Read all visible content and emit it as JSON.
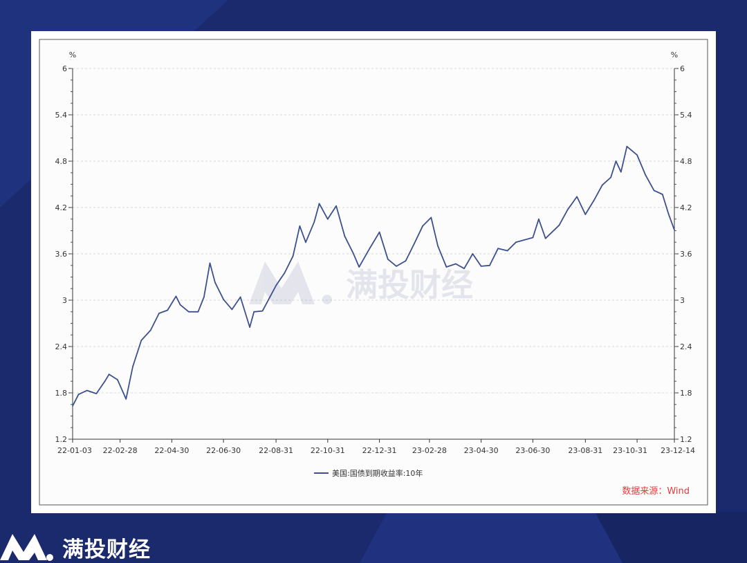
{
  "brand": {
    "name": "满投财经",
    "watermark": "满投财经"
  },
  "colors": {
    "background": "#1a2a6c",
    "line": "#3d4f8c",
    "source": "#e23a3a"
  },
  "chart_data": {
    "type": "line",
    "title": "",
    "xlabel": "",
    "ylabel": "%",
    "ylabel_right": "%",
    "ylim": [
      1.2,
      6
    ],
    "yticks": [
      1.2,
      1.8,
      2.4,
      3,
      3.6,
      4.2,
      4.8,
      5.4,
      6
    ],
    "xlim": [
      "2022-01-03",
      "2023-12-14"
    ],
    "xticks": [
      "22-01-03",
      "22-02-28",
      "22-04-30",
      "22-06-30",
      "22-08-31",
      "22-10-31",
      "22-12-31",
      "23-02-28",
      "23-04-30",
      "23-06-30",
      "23-08-31",
      "23-10-31",
      "23-12-14"
    ],
    "grid": true,
    "legend_position": "bottom",
    "source_note": "数据来源：Wind",
    "series": [
      {
        "name": "美国:国债到期收益率:10年",
        "x": [
          "2022-01-03",
          "2022-01-10",
          "2022-01-20",
          "2022-01-31",
          "2022-02-10",
          "2022-02-15",
          "2022-02-25",
          "2022-03-07",
          "2022-03-15",
          "2022-03-25",
          "2022-04-05",
          "2022-04-15",
          "2022-04-25",
          "2022-05-05",
          "2022-05-10",
          "2022-05-20",
          "2022-05-31",
          "2022-06-07",
          "2022-06-14",
          "2022-06-20",
          "2022-06-30",
          "2022-07-10",
          "2022-07-20",
          "2022-07-31",
          "2022-08-05",
          "2022-08-15",
          "2022-08-31",
          "2022-09-10",
          "2022-09-20",
          "2022-09-28",
          "2022-10-05",
          "2022-10-15",
          "2022-10-21",
          "2022-10-31",
          "2022-11-10",
          "2022-11-20",
          "2022-11-30",
          "2022-12-07",
          "2022-12-20",
          "2022-12-31",
          "2023-01-10",
          "2023-01-20",
          "2023-01-31",
          "2023-02-10",
          "2023-02-20",
          "2023-03-02",
          "2023-03-10",
          "2023-03-20",
          "2023-03-31",
          "2023-04-10",
          "2023-04-20",
          "2023-04-30",
          "2023-05-10",
          "2023-05-20",
          "2023-05-31",
          "2023-06-10",
          "2023-06-20",
          "2023-06-30",
          "2023-07-07",
          "2023-07-15",
          "2023-07-31",
          "2023-08-10",
          "2023-08-21",
          "2023-08-31",
          "2023-09-10",
          "2023-09-20",
          "2023-09-30",
          "2023-10-06",
          "2023-10-12",
          "2023-10-19",
          "2023-10-31",
          "2023-11-10",
          "2023-11-20",
          "2023-11-30",
          "2023-12-07",
          "2023-12-14"
        ],
        "values": [
          1.63,
          1.78,
          1.83,
          1.79,
          1.95,
          2.04,
          1.97,
          1.72,
          2.14,
          2.48,
          2.61,
          2.83,
          2.87,
          3.05,
          2.94,
          2.85,
          2.85,
          3.04,
          3.48,
          3.23,
          3.01,
          2.88,
          3.04,
          2.65,
          2.85,
          2.86,
          3.19,
          3.35,
          3.57,
          3.96,
          3.75,
          4.01,
          4.25,
          4.05,
          4.22,
          3.83,
          3.61,
          3.43,
          3.68,
          3.88,
          3.53,
          3.44,
          3.51,
          3.73,
          3.96,
          4.07,
          3.7,
          3.43,
          3.47,
          3.41,
          3.6,
          3.44,
          3.45,
          3.67,
          3.64,
          3.75,
          3.78,
          3.81,
          4.05,
          3.8,
          3.97,
          4.17,
          4.34,
          4.11,
          4.29,
          4.49,
          4.59,
          4.8,
          4.66,
          4.99,
          4.88,
          4.62,
          4.42,
          4.37,
          4.12,
          3.91
        ]
      }
    ]
  }
}
